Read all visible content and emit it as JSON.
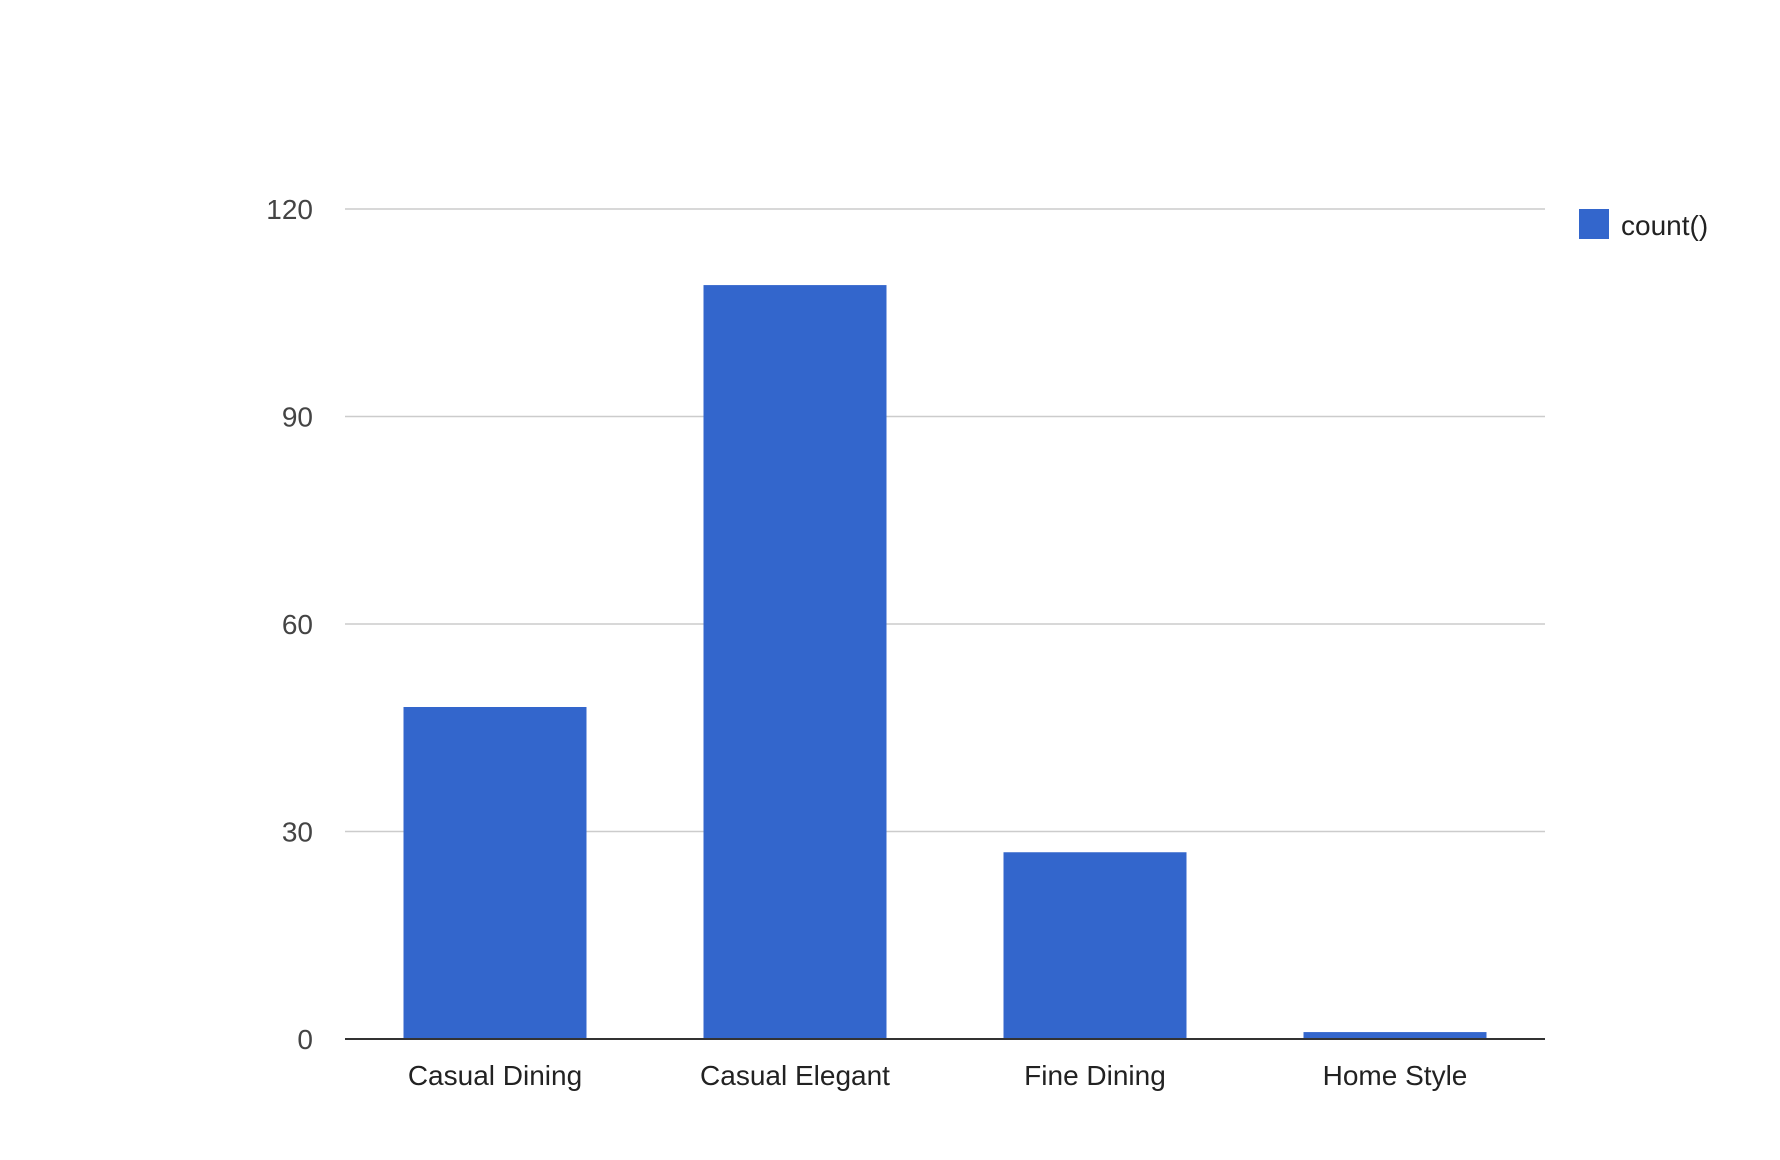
{
  "chart_data": {
    "type": "bar",
    "categories": [
      "Casual Dining",
      "Casual Elegant",
      "Fine Dining",
      "Home Style"
    ],
    "series": [
      {
        "name": "count()",
        "values": [
          48,
          109,
          27,
          1
        ],
        "color": "#3366cc"
      }
    ],
    "y_ticks": [
      "0",
      "30",
      "60",
      "90",
      "120"
    ],
    "ylim": [
      0,
      120
    ],
    "grid": true,
    "legend_position": "top-right",
    "gridline_color": "#cccccc",
    "axis_color": "#333333"
  }
}
